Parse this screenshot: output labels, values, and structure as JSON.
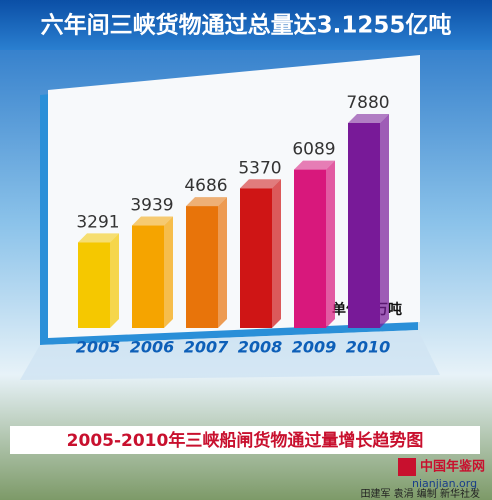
{
  "chart_data": {
    "type": "bar",
    "title": "六年间三峡货物通过总量达3.1255亿吨",
    "subtitle": "2005-2010年三峡船闸货物通过量增长趋势图",
    "unit": "单位：万吨",
    "credit": "田建军 袁涓 编制 新华社发",
    "watermark": "中国年鉴网",
    "watermark_url": "nianjian.org",
    "categories": [
      "2005",
      "2006",
      "2007",
      "2008",
      "2009",
      "2010"
    ],
    "values": [
      3291,
      3939,
      4686,
      5370,
      6089,
      7880
    ],
    "colors": [
      "#f5c800",
      "#f5a400",
      "#e8740a",
      "#cf1515",
      "#d8187c",
      "#781a98"
    ]
  }
}
